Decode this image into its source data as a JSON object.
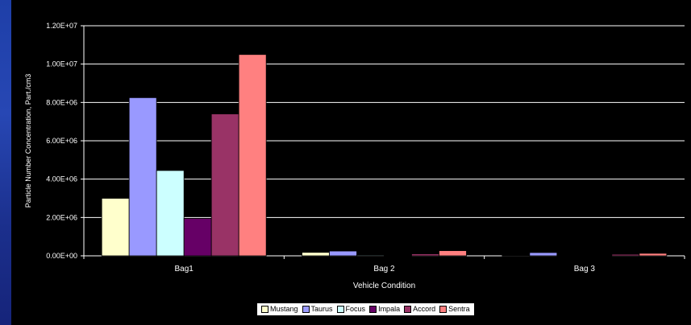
{
  "chart_data": {
    "type": "bar",
    "title": "",
    "xlabel": "Vehicle Condition",
    "ylabel": "Particle Number Concentration, Part./cm3",
    "categories": [
      "Bag1",
      "Bag 2",
      "Bag 3"
    ],
    "ylim": [
      0,
      12000000
    ],
    "yticks": [
      {
        "value": 0,
        "label": "0.00E+00"
      },
      {
        "value": 2000000,
        "label": "2.00E+06"
      },
      {
        "value": 4000000,
        "label": "4.00E+06"
      },
      {
        "value": 6000000,
        "label": "6.00E+06"
      },
      {
        "value": 8000000,
        "label": "8.00E+06"
      },
      {
        "value": 10000000,
        "label": "1.00E+07"
      },
      {
        "value": 12000000,
        "label": "1.20E+07"
      }
    ],
    "grid": true,
    "legend_position": "bottom",
    "series": [
      {
        "name": "Mustang",
        "color": "#ffffcc",
        "values": [
          3000000,
          180000,
          30000
        ]
      },
      {
        "name": "Taurus",
        "color": "#9999ff",
        "values": [
          8250000,
          250000,
          170000
        ]
      },
      {
        "name": "Focus",
        "color": "#ccffff",
        "values": [
          4450000,
          40000,
          20000
        ]
      },
      {
        "name": "Impala",
        "color": "#660066",
        "values": [
          1950000,
          20000,
          15000
        ]
      },
      {
        "name": "Accord",
        "color": "#993366",
        "values": [
          7400000,
          100000,
          80000
        ]
      },
      {
        "name": "Sentra",
        "color": "#ff8080",
        "values": [
          10500000,
          270000,
          130000
        ]
      }
    ]
  }
}
